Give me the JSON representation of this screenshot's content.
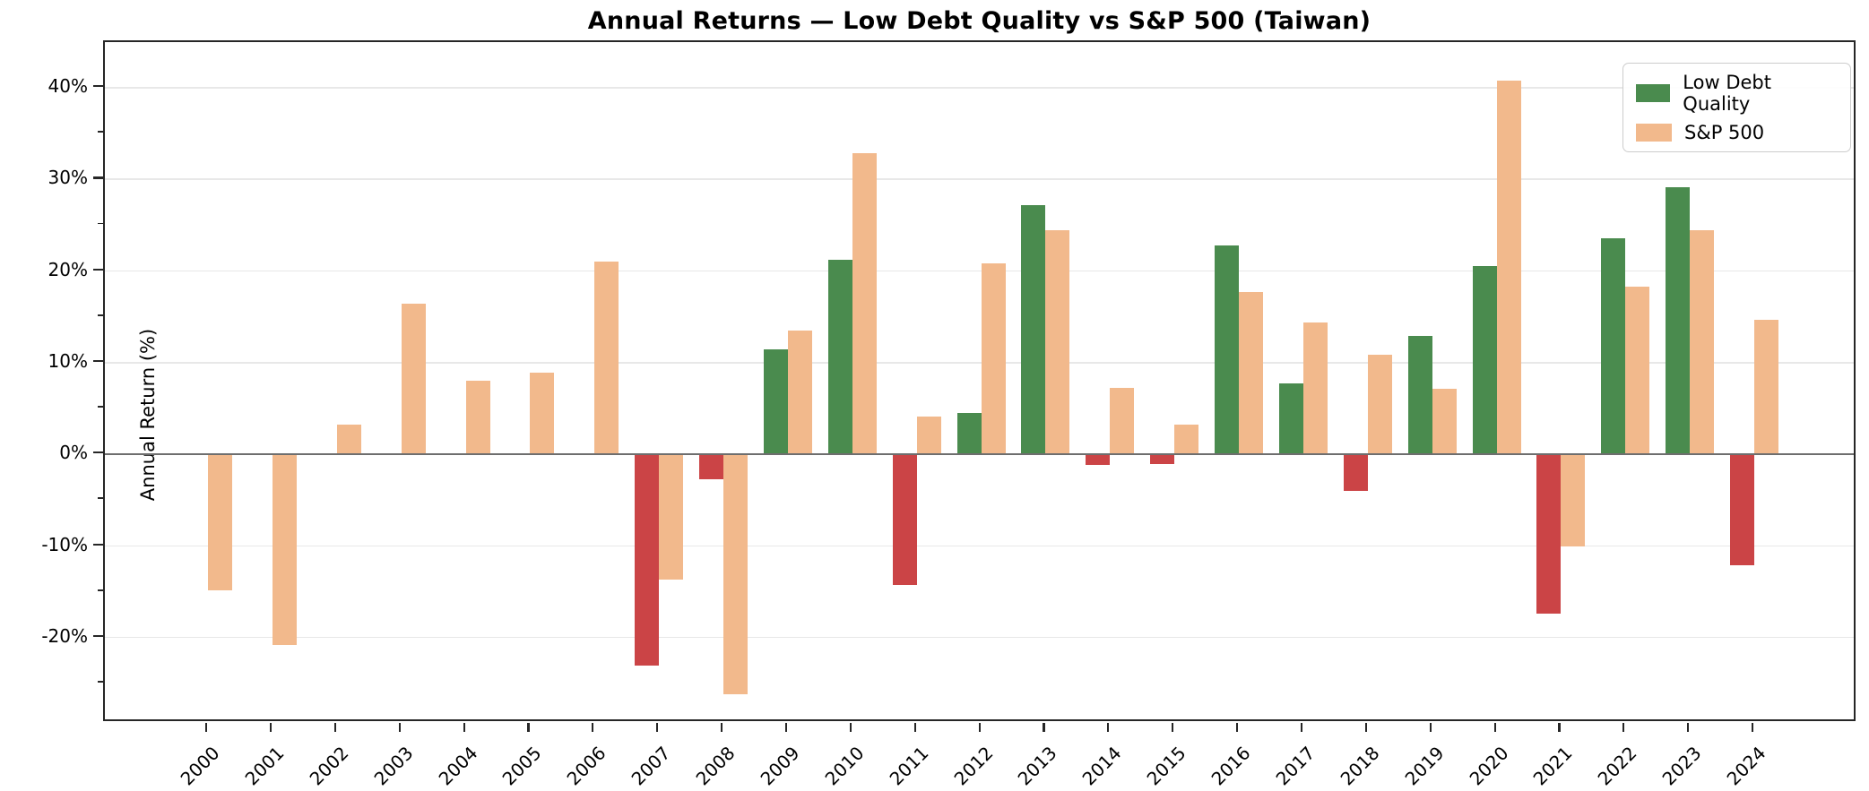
{
  "title": "Annual Returns — Low Debt Quality vs S&P 500 (Taiwan)",
  "y_axis": {
    "label": "Annual Return (%)",
    "ticks": [
      {
        "value": 40,
        "label": "40%"
      },
      {
        "value": 30,
        "label": "30%"
      },
      {
        "value": 20,
        "label": "20%"
      },
      {
        "value": 10,
        "label": "10%"
      },
      {
        "value": 0,
        "label": "0%"
      },
      {
        "value": -10,
        "label": "-10%"
      },
      {
        "value": -20,
        "label": "-20%"
      }
    ],
    "minor_tick_step": 5
  },
  "x_axis": {
    "tick_labels": [
      "2000",
      "2001",
      "2002",
      "2003",
      "2004",
      "2005",
      "2006",
      "2007",
      "2008",
      "2009",
      "2010",
      "2011",
      "2012",
      "2013",
      "2014",
      "2015",
      "2016",
      "2017",
      "2018",
      "2019",
      "2020",
      "2021",
      "2022",
      "2023",
      "2024"
    ]
  },
  "legend": {
    "items": [
      {
        "label": "Low Debt Quality",
        "color": "#4a8b4e"
      },
      {
        "label": "S&P 500",
        "color": "#f2b98c"
      }
    ]
  },
  "colors": {
    "low_debt_quality_positive": "#4a8b4e",
    "low_debt_quality_negative": "#cb4446",
    "sp500": "#f2b98c",
    "gridline": "#e8e8e8",
    "zero_line": "#6e6e6e",
    "spine": "#262626"
  },
  "chart_data": {
    "type": "bar",
    "title": "Annual Returns — Low Debt Quality vs S&P 500 (Taiwan)",
    "categories": [
      2000,
      2001,
      2002,
      2003,
      2004,
      2005,
      2006,
      2007,
      2008,
      2009,
      2010,
      2011,
      2012,
      2013,
      2014,
      2015,
      2016,
      2017,
      2018,
      2019,
      2020,
      2021,
      2022,
      2023,
      2024
    ],
    "series": [
      {
        "name": "Low Debt Quality",
        "values": [
          null,
          null,
          null,
          null,
          null,
          null,
          null,
          -23.0,
          -2.7,
          11.5,
          21.2,
          -14.2,
          4.5,
          27.2,
          -1.1,
          -1.0,
          22.8,
          7.8,
          -4.0,
          12.9,
          20.6,
          -17.4,
          23.6,
          29.2,
          -12.1
        ],
        "color_positive": "#4a8b4e",
        "color_negative": "#cb4446"
      },
      {
        "name": "S&P 500",
        "values": [
          -14.8,
          -20.8,
          3.3,
          16.5,
          8.0,
          8.9,
          21.0,
          -13.7,
          -26.2,
          13.5,
          32.9,
          4.1,
          20.9,
          24.5,
          7.3,
          3.3,
          17.7,
          14.4,
          10.9,
          7.2,
          40.8,
          -10.0,
          18.3,
          24.5,
          14.7
        ],
        "color_positive": "#f2b98c",
        "color_negative": "#f2b98c"
      }
    ],
    "xlabel": "",
    "ylabel": "Annual Return (%)",
    "ylim": [
      -29.3,
      45.0
    ],
    "grid": true,
    "legend_position": "upper right"
  }
}
